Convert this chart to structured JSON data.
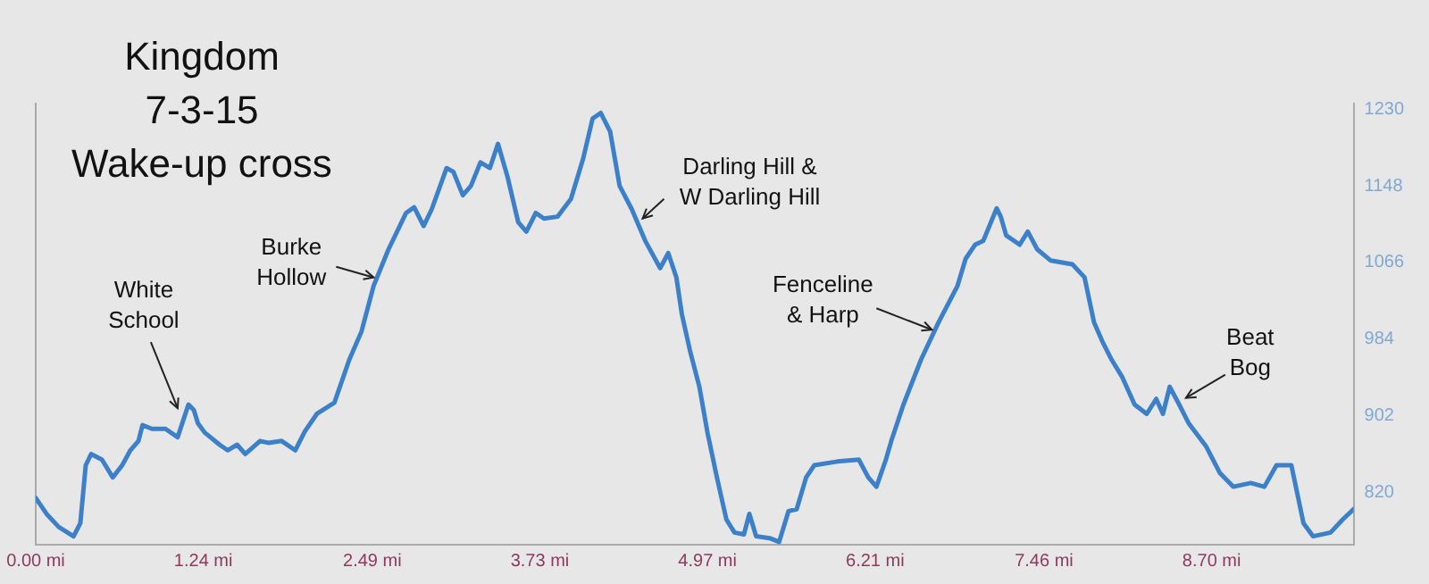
{
  "chart_data": {
    "type": "line",
    "title": "Kingdom\n7-3-15\nWake-up cross",
    "x": [
      0,
      0.08,
      0.17,
      0.28,
      0.33,
      0.37,
      0.41,
      0.49,
      0.57,
      0.64,
      0.7,
      0.76,
      0.79,
      0.86,
      0.96,
      1.05,
      1.13,
      1.17,
      1.2,
      1.25,
      1.36,
      1.42,
      1.49,
      1.55,
      1.66,
      1.72,
      1.82,
      1.92,
      1.99,
      2.08,
      2.21,
      2.32,
      2.41,
      2.5,
      2.61,
      2.74,
      2.8,
      2.87,
      2.93,
      3.04,
      3.09,
      3.16,
      3.22,
      3.29,
      3.36,
      3.42,
      3.49,
      3.57,
      3.63,
      3.7,
      3.76,
      3.86,
      3.96,
      4.05,
      4.12,
      4.18,
      4.25,
      4.32,
      4.41,
      4.51,
      4.62,
      4.68,
      4.74,
      4.78,
      4.84,
      4.91,
      4.97,
      5.04,
      5.11,
      5.17,
      5.24,
      5.28,
      5.33,
      5.43,
      5.5,
      5.57,
      5.63,
      5.7,
      5.76,
      5.93,
      6.09,
      6.16,
      6.22,
      6.29,
      6.33,
      6.42,
      6.55,
      6.68,
      6.82,
      6.88,
      6.95,
      7.01,
      7.11,
      7.14,
      7.18,
      7.28,
      7.34,
      7.41,
      7.51,
      7.67,
      7.76,
      7.83,
      7.89,
      7.96,
      8.04,
      8.13,
      8.22,
      8.29,
      8.34,
      8.39,
      8.46,
      8.53,
      8.66,
      8.76,
      8.86,
      8.99,
      9.09,
      9.18,
      9.29,
      9.38,
      9.45,
      9.58,
      9.67,
      9.75
    ],
    "series": [
      {
        "color": "#3b80c9",
        "values": [
          814,
          797,
          783,
          773,
          787,
          849,
          861,
          855,
          836,
          849,
          865,
          875,
          892,
          888,
          888,
          879,
          914,
          908,
          894,
          884,
          871,
          865,
          871,
          861,
          875,
          873,
          875,
          865,
          885,
          904,
          916,
          962,
          992,
          1041,
          1080,
          1119,
          1125,
          1105,
          1123,
          1167,
          1163,
          1138,
          1148,
          1173,
          1167,
          1193,
          1158,
          1109,
          1099,
          1119,
          1113,
          1115,
          1134,
          1177,
          1220,
          1226,
          1206,
          1148,
          1123,
          1089,
          1060,
          1076,
          1050,
          1011,
          972,
          933,
          884,
          836,
          791,
          777,
          775,
          797,
          773,
          771,
          767,
          800,
          802,
          836,
          849,
          853,
          855,
          836,
          826,
          855,
          875,
          914,
          962,
          1002,
          1041,
          1070,
          1085,
          1089,
          1124,
          1115,
          1095,
          1085,
          1099,
          1080,
          1068,
          1064,
          1050,
          1002,
          982,
          962,
          943,
          914,
          904,
          920,
          904,
          933,
          914,
          894,
          869,
          841,
          826,
          830,
          826,
          849,
          849,
          787,
          773,
          777,
          791,
          802
        ]
      }
    ],
    "xlim": [
      0,
      9.75
    ],
    "ylim": [
      764,
      1236
    ],
    "xticks": [
      {
        "value": 0,
        "label": "0.00 mi"
      },
      {
        "value": 1.24,
        "label": "1.24 mi"
      },
      {
        "value": 2.49,
        "label": "2.49 mi"
      },
      {
        "value": 3.73,
        "label": "3.73 mi"
      },
      {
        "value": 4.97,
        "label": "4.97 mi"
      },
      {
        "value": 6.21,
        "label": "6.21 mi"
      },
      {
        "value": 7.46,
        "label": "7.46 mi"
      },
      {
        "value": 8.7,
        "label": "8.70 mi"
      }
    ],
    "yticks": [
      820,
      902,
      984,
      1066,
      1148,
      1230
    ],
    "annotations": [
      {
        "text": "White\nSchool",
        "x": 1.05,
        "y": 910
      },
      {
        "text": "Burke\nHollow",
        "x": 2.5,
        "y": 1050
      },
      {
        "text": "Darling Hill &\nW Darling Hill",
        "x": 4.49,
        "y": 1113
      },
      {
        "text": "Fenceline\n& Harp",
        "x": 6.63,
        "y": 994
      },
      {
        "text": "Beat\nBog",
        "x": 8.51,
        "y": 921
      }
    ],
    "grid": false,
    "legend": false,
    "marker": "none",
    "line_style": "solid"
  }
}
